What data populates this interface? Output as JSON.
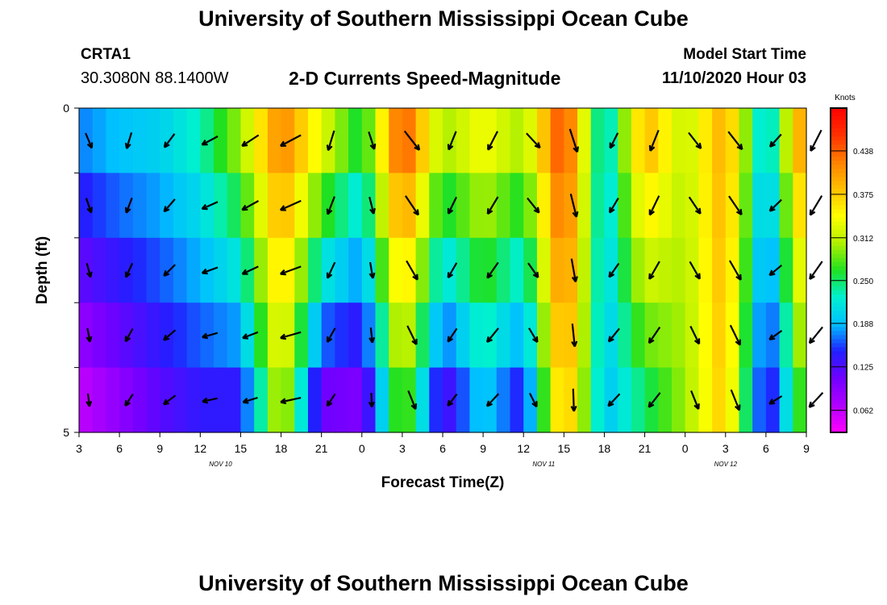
{
  "page": {
    "top_title": "University of Southern Mississippi Ocean Cube",
    "bottom_title": "University of Southern Mississippi Ocean Cube",
    "station_id": "CRTA1",
    "station_location": "30.3080N 88.1400W",
    "plot_title": "2-D Currents Speed-Magnitude",
    "model_start_label": "Model Start Time",
    "model_start_value": "11/10/2020 Hour 03"
  },
  "colors": {
    "scale": [
      "#ff00ff",
      "#b000ff",
      "#7000ff",
      "#2020ff",
      "#00c0ff",
      "#00f0d0",
      "#20e020",
      "#b0f000",
      "#ffff00",
      "#ffc000",
      "#ff8000",
      "#ff3000",
      "#ff0000"
    ]
  },
  "chart_data": {
    "type": "heatmap",
    "subtype": "depth-time current speed with direction vectors",
    "title": "2-D Currents Speed-Magnitude",
    "xlabel": "Forecast Time(Z)",
    "ylabel": "Depth (ft)",
    "ylim": [
      0,
      5
    ],
    "y_tick_labels": [
      "0",
      "5"
    ],
    "y_minor_ticks": [
      1,
      2,
      3,
      4
    ],
    "x_tick_labels": [
      "3",
      "6",
      "9",
      "12",
      "15",
      "18",
      "21",
      "0",
      "3",
      "6",
      "9",
      "12",
      "15",
      "18",
      "21",
      "0",
      "3",
      "6",
      "9"
    ],
    "x_date_labels": [
      {
        "text": "NOV  10",
        "at_index": 4
      },
      {
        "text": "NOV  11",
        "at_index": 12
      },
      {
        "text": "NOV  12",
        "at_index": 16.5
      }
    ],
    "colorbar": {
      "title": "Knots",
      "tick_labels": [
        "0.062",
        "0.125",
        "0.188",
        "0.250",
        "0.312",
        "0.375",
        "0.438"
      ],
      "range": [
        0.03,
        0.5
      ]
    },
    "depth_levels": [
      0.5,
      1.5,
      2.5,
      3.5,
      4.5
    ],
    "time_hours_since_start": [
      0,
      3,
      6,
      9,
      12,
      15,
      18,
      21,
      24,
      27,
      30,
      33,
      36,
      39,
      42,
      45,
      48,
      51,
      54
    ],
    "speed_knots_surface": [
      0.17,
      0.19,
      0.2,
      0.23,
      0.3,
      0.42,
      0.33,
      0.25,
      0.45,
      0.3,
      0.34,
      0.3,
      0.46,
      0.2,
      0.39,
      0.31,
      0.4,
      0.19,
      0.43
    ],
    "speed_knots_bottom": [
      0.06,
      0.09,
      0.12,
      0.14,
      0.14,
      0.33,
      0.11,
      0.1,
      0.3,
      0.12,
      0.2,
      0.14,
      0.4,
      0.19,
      0.25,
      0.3,
      0.38,
      0.12,
      0.3
    ],
    "direction_deg_to": [
      165,
      205,
      225,
      250,
      245,
      250,
      205,
      170,
      150,
      210,
      215,
      145,
      170,
      215,
      210,
      150,
      150,
      230,
      215
    ]
  }
}
